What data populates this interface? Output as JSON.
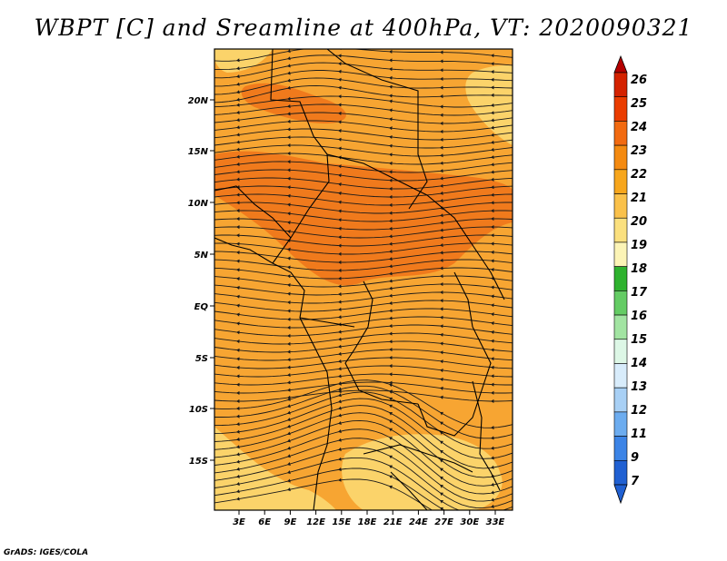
{
  "title": "WBPT [C] and Sreamline at 400hPa, VT: 2020090321",
  "footer": "GrADS: IGES/COLA",
  "map": {
    "lat_ticks": [
      "20N",
      "15N",
      "10N",
      "5N",
      "EQ",
      "5S",
      "10S",
      "15S"
    ],
    "lon_ticks": [
      "3E",
      "6E",
      "9E",
      "12E",
      "15E",
      "18E",
      "21E",
      "24E",
      "27E",
      "30E",
      "33E"
    ],
    "variable": "wet-bulb potential temperature",
    "units": "C",
    "level": "400hPa",
    "streamlines": true
  },
  "colorbar": {
    "labels": [
      "26",
      "25",
      "24",
      "23",
      "22",
      "21",
      "20",
      "19",
      "18",
      "17",
      "16",
      "15",
      "14",
      "13",
      "12",
      "11",
      "9",
      "7"
    ],
    "colors": [
      "#b40000",
      "#d42200",
      "#ea3c00",
      "#f26a10",
      "#f48a10",
      "#f7a61c",
      "#fac14a",
      "#fbe07e",
      "#fcf4b6",
      "#2eb22e",
      "#64cc64",
      "#a2e4a2",
      "#ddf7e6",
      "#d8ecfb",
      "#a8d0f5",
      "#6cacef",
      "#3c84e6",
      "#2060d2"
    ]
  },
  "colors": {
    "field_base": "#f7a532",
    "field_warm": "#f07a1c",
    "field_cool": "#fbd36a"
  }
}
